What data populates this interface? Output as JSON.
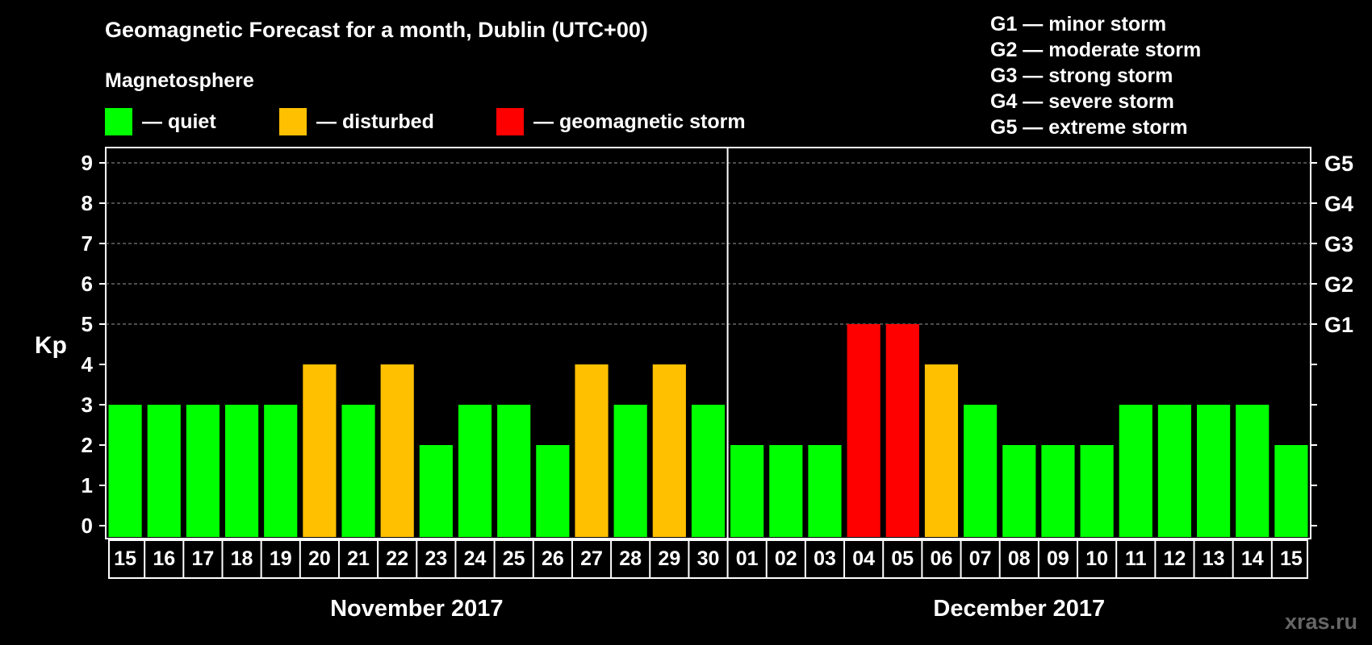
{
  "title": "Geomagnetic Forecast for a month, Dublin (UTC+00)",
  "subtitle": "Magnetosphere",
  "legend": [
    {
      "label": "— quiet",
      "color": "#00ff00"
    },
    {
      "label": "— disturbed",
      "color": "#ffc000"
    },
    {
      "label": "— geomagnetic storm",
      "color": "#ff0000"
    }
  ],
  "storm_scale": [
    "G1 — minor storm",
    "G2 — moderate storm",
    "G3 — strong storm",
    "G4 — severe storm",
    "G5 — extreme storm"
  ],
  "watermark": "xras.ru",
  "colors": {
    "quiet": "#00ff00",
    "disturbed": "#ffc000",
    "storm": "#ff0000"
  },
  "chart_data": {
    "type": "bar",
    "ylabel": "Kp",
    "ylim": [
      0,
      9
    ],
    "yticks": [
      "0",
      "1",
      "2",
      "3",
      "4",
      "5",
      "6",
      "7",
      "8",
      "9"
    ],
    "right_labels": [
      {
        "kp": 5,
        "label": "G1"
      },
      {
        "kp": 6,
        "label": "G2"
      },
      {
        "kp": 7,
        "label": "G3"
      },
      {
        "kp": 8,
        "label": "G4"
      },
      {
        "kp": 9,
        "label": "G5"
      }
    ],
    "categories": [
      "15",
      "16",
      "17",
      "18",
      "19",
      "20",
      "21",
      "22",
      "23",
      "24",
      "25",
      "26",
      "27",
      "28",
      "29",
      "30",
      "01",
      "02",
      "03",
      "04",
      "05",
      "06",
      "07",
      "08",
      "09",
      "10",
      "11",
      "12",
      "13",
      "14",
      "15"
    ],
    "values": [
      3,
      3,
      3,
      3,
      3,
      4,
      3,
      4,
      2,
      3,
      3,
      2,
      4,
      3,
      4,
      3,
      2,
      2,
      2,
      5,
      5,
      4,
      3,
      2,
      2,
      2,
      3,
      3,
      3,
      3,
      2
    ],
    "months": [
      {
        "label": "November 2017",
        "start": 0,
        "end": 15
      },
      {
        "label": "December 2017",
        "start": 16,
        "end": 30
      }
    ]
  }
}
